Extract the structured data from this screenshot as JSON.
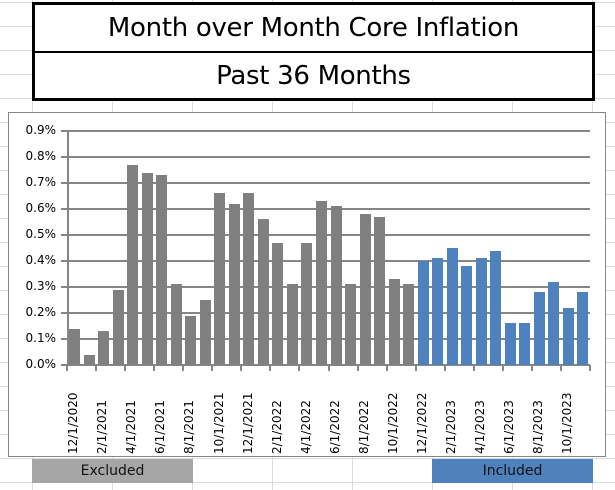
{
  "title": {
    "line1": "Month over Month Core Inflation",
    "line2": "Past 36 Months"
  },
  "colors": {
    "excluded_bar": "#808080",
    "included_bar": "#4F81BD",
    "excluded_band": "#A6A6A6",
    "included_band": "#4F81BD",
    "gridline": "#868686"
  },
  "bands": {
    "excluded_label": "Excluded",
    "included_label": "Included"
  },
  "chart_data": {
    "type": "bar",
    "title": "Month over Month Core Inflation — Past 36 Months",
    "xlabel": "",
    "ylabel": "",
    "ylim": [
      0,
      0.9
    ],
    "y_unit": "%",
    "y_ticks": [
      "0.0%",
      "0.1%",
      "0.2%",
      "0.3%",
      "0.4%",
      "0.5%",
      "0.6%",
      "0.7%",
      "0.8%",
      "0.9%"
    ],
    "grid": true,
    "legend": "none",
    "x_tick_labels": [
      "12/1/2020",
      "2/1/2021",
      "4/1/2021",
      "6/1/2021",
      "8/1/2021",
      "10/1/2021",
      "12/1/2021",
      "2/1/2022",
      "4/1/2022",
      "6/1/2022",
      "8/1/2022",
      "10/1/2022",
      "12/1/2022",
      "2/1/2023",
      "4/1/2023",
      "6/1/2023",
      "8/1/2023",
      "10/1/2023"
    ],
    "categories": [
      "12/1/2020",
      "1/1/2021",
      "2/1/2021",
      "3/1/2021",
      "4/1/2021",
      "5/1/2021",
      "6/1/2021",
      "7/1/2021",
      "8/1/2021",
      "9/1/2021",
      "10/1/2021",
      "11/1/2021",
      "12/1/2021",
      "1/1/2022",
      "2/1/2022",
      "3/1/2022",
      "4/1/2022",
      "5/1/2022",
      "6/1/2022",
      "7/1/2022",
      "8/1/2022",
      "9/1/2022",
      "10/1/2022",
      "11/1/2022",
      "12/1/2022",
      "1/1/2023",
      "2/1/2023",
      "3/1/2023",
      "4/1/2023",
      "5/1/2023",
      "6/1/2023",
      "7/1/2023",
      "8/1/2023",
      "9/1/2023",
      "10/1/2023",
      "11/1/2023"
    ],
    "values": [
      0.14,
      0.04,
      0.13,
      0.29,
      0.77,
      0.74,
      0.73,
      0.31,
      0.19,
      0.25,
      0.66,
      0.62,
      0.66,
      0.56,
      0.47,
      0.31,
      0.47,
      0.63,
      0.61,
      0.31,
      0.58,
      0.57,
      0.33,
      0.31,
      0.4,
      0.41,
      0.45,
      0.38,
      0.41,
      0.44,
      0.16,
      0.16,
      0.28,
      0.32,
      0.22,
      0.28
    ],
    "series": [
      {
        "name": "Excluded",
        "color": "#808080",
        "range": [
          0,
          23
        ]
      },
      {
        "name": "Included",
        "color": "#4F81BD",
        "range": [
          24,
          35
        ]
      }
    ]
  }
}
